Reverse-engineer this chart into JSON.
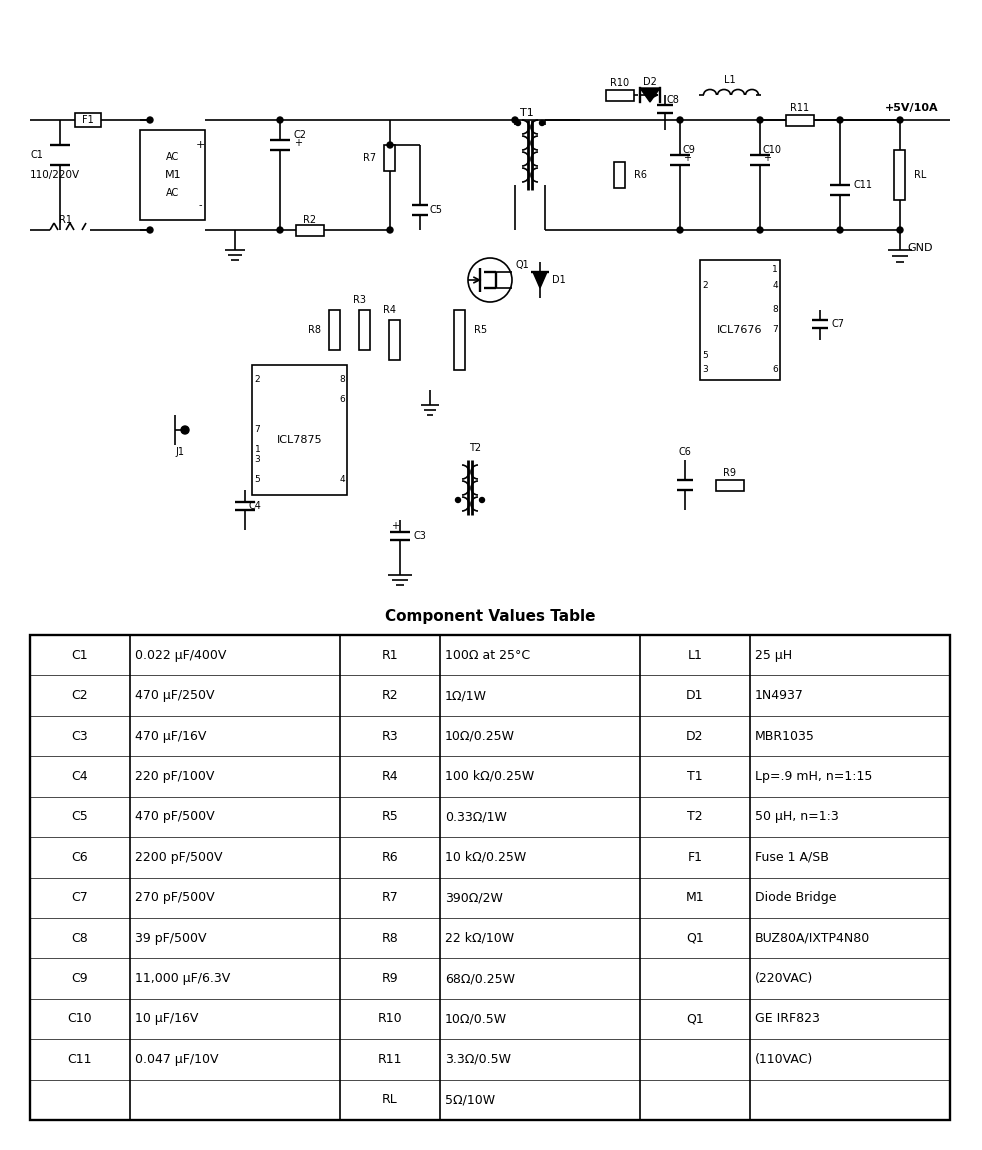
{
  "title": "Component Values Table",
  "table_col1": [
    "C1",
    "C2",
    "C3",
    "C4",
    "C5",
    "C6",
    "C7",
    "C8",
    "C9",
    "C10",
    "C11"
  ],
  "table_val1": [
    "0.022 μF/400V",
    "470 μF/250V",
    "470 μF/16V",
    "220 pF/100V",
    "470 pF/500V",
    "2200 pF/500V",
    "270 pF/500V",
    "39 pF/500V",
    "11,000 μF/6.3V",
    "10 μF/16V",
    "0.047 μF/10V"
  ],
  "table_col2": [
    "R1",
    "R2",
    "R3",
    "R4",
    "R5",
    "R6",
    "R7",
    "R8",
    "R9",
    "R10",
    "R11",
    "RL"
  ],
  "table_val2": [
    "100Ω at 25°C",
    "1Ω/1W",
    "10Ω/0.25W",
    "100 kΩ/0.25W",
    "0.33Ω/1W",
    "10 kΩ/0.25W",
    "390Ω/2W",
    "22 kΩ/10W",
    "68Ω/0.25W",
    "10Ω/0.5W",
    "3.3Ω/0.5W",
    "5Ω/10W"
  ],
  "table_col3": [
    "L1",
    "D1",
    "D2",
    "T1",
    "T2",
    "F1",
    "M1",
    "Q1",
    "",
    "Q1",
    ""
  ],
  "table_val3": [
    "25 μH",
    "1N4937",
    "MBR1035",
    "Lp=.9 mH, n=1:15",
    "50 μH, n=1:3",
    "Fuse 1 A/SB",
    "Diode Bridge",
    "BUZ80A/IXTP4N80",
    "(220VAC)",
    "GE IRF823",
    "(110VAC)"
  ],
  "bg_color": "#ffffff",
  "line_color": "#000000",
  "font_size": 9,
  "title_font_size": 11
}
